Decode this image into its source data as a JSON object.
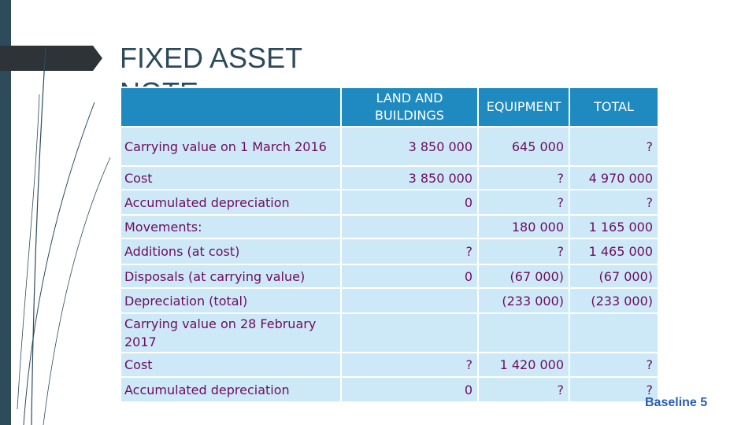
{
  "title": "FIXED ASSET NOTE",
  "table": {
    "header": [
      null,
      "LAND AND BUILDINGS",
      "EQUIPMENT",
      "TOTAL"
    ],
    "rows": [
      [
        "Carrying value on 1 March 2016",
        "3 850 000",
        "645 000",
        "?"
      ],
      [
        "Cost",
        "3 850 000",
        "?",
        "4 970 000"
      ],
      [
        "Accumulated depreciation",
        "0",
        "?",
        "?"
      ],
      [
        "Movements:",
        null,
        "180 000",
        "1 165 000"
      ],
      [
        "Additions (at cost)",
        "?",
        "?",
        "1 465 000"
      ],
      [
        "Disposals (at carrying value)",
        "0",
        "(67 000)",
        "(67 000)"
      ],
      [
        "Depreciation (total)",
        null,
        "(233 000)",
        "(233 000)"
      ],
      [
        "Carrying value on 28 February 2017",
        null,
        null,
        null
      ],
      [
        "Cost",
        "?",
        "1 420 000",
        "?"
      ],
      [
        "Accumulated depreciation",
        "0",
        "?",
        "?"
      ]
    ]
  },
  "footer": "Baseline 5"
}
